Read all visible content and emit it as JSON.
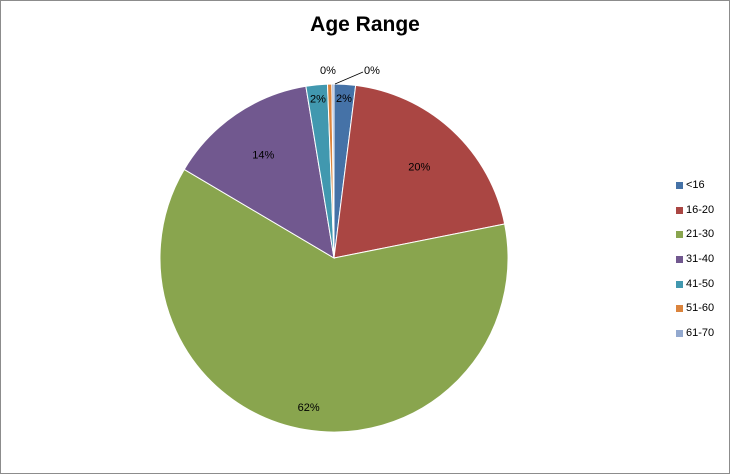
{
  "chart_data": {
    "type": "pie",
    "title": "Age Range",
    "categories": [
      "<16",
      "16-20",
      "21-30",
      "31-40",
      "41-50",
      "51-60",
      "61-70"
    ],
    "values": [
      2,
      20,
      62,
      14,
      2,
      0.4,
      0.2
    ],
    "labels": [
      "2%",
      "20%",
      "62%",
      "14%",
      "2%",
      "0%",
      "0%"
    ],
    "colors": [
      "#4572A7",
      "#AA4643",
      "#89A54E",
      "#71588F",
      "#4198AF",
      "#DB843D",
      "#93A9CF"
    ],
    "legend_position": "right"
  }
}
